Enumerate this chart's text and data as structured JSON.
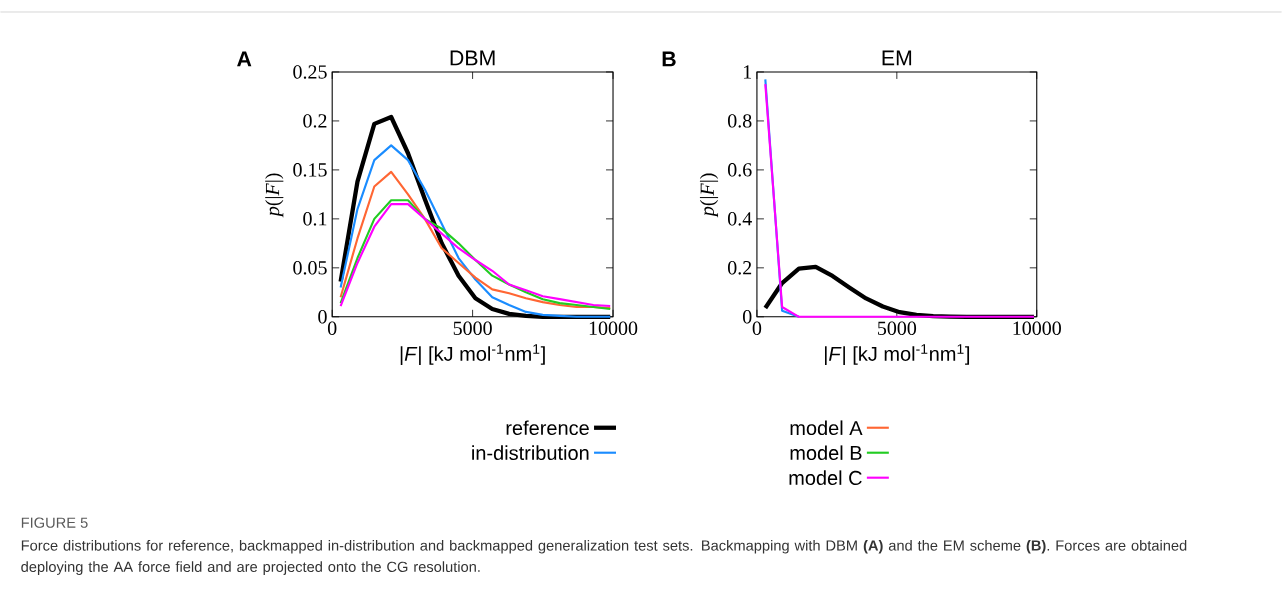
{
  "chart_data": [
    {
      "type": "line",
      "title": "DBM",
      "xlabel": "|*F*| [kJ mol$^{-1}$nm$^{1}$]",
      "ylabel": "*p*(|*F*|)",
      "annotations": [
        "A",
        "FIGURE 5",
        "Force distributions for reference, backmapped in-distribution and backmapped generalization test sets. Backmapping with DBM **(A)** and the EM scheme **(B)**. Forces are obtained deploying the AA force field and are projected onto the CG resolution."
      ],
      "x": [
        300,
        900,
        1500,
        2100,
        2700,
        3300,
        3900,
        4500,
        5100,
        5700,
        6300,
        6900,
        7500,
        8100,
        8700,
        9300,
        9900
      ],
      "xlim": [
        0,
        10000
      ],
      "xticks": [
        0,
        5000,
        10000
      ],
      "ylim": [
        0,
        0.25
      ],
      "yticks": [
        0,
        0.05,
        0.1,
        0.15,
        0.2,
        0.25
      ],
      "legend": "bottom",
      "marker": "none",
      "line_style": "solid",
      "grid": false,
      "series": [
        {
          "name": "reference",
          "color": "#000000",
          "values": [
            0.036,
            0.138,
            0.197,
            0.204,
            0.167,
            0.12,
            0.075,
            0.042,
            0.019,
            0.008,
            0.003,
            0.001,
            0,
            0,
            0,
            0,
            0
          ]
        },
        {
          "name": "in-distribution",
          "color": "#1a8cff",
          "values": [
            0.03,
            0.11,
            0.16,
            0.175,
            0.16,
            0.13,
            0.095,
            0.06,
            0.038,
            0.02,
            0.012,
            0.005,
            0.002,
            0.001,
            0,
            0,
            0
          ]
        },
        {
          "color": "#ff6633",
          "values": [
            0.02,
            0.08,
            0.133,
            0.148,
            0.125,
            0.1,
            0.07,
            0.055,
            0.04,
            0.028,
            0.024,
            0.019,
            0.015,
            0.012,
            0.01,
            0.01,
            0.009
          ]
        },
        {
          "color": "#22cc22",
          "values": [
            0.014,
            0.06,
            0.1,
            0.119,
            0.119,
            0.1,
            0.09,
            0.075,
            0.058,
            0.042,
            0.033,
            0.025,
            0.018,
            0.014,
            0.012,
            0.01,
            0.008
          ]
        },
        {
          "color": "#ff00ff",
          "values": [
            0.011,
            0.055,
            0.092,
            0.115,
            0.115,
            0.1,
            0.085,
            0.07,
            0.058,
            0.047,
            0.033,
            0.027,
            0.021,
            0.018,
            0.015,
            0.012,
            0.011
          ]
        }
      ]
    },
    {
      "type": "line",
      "title": "EM",
      "xlabel": "|*F*| [kJ mol$^{-1}$nm$^{1}$]",
      "ylabel": "*p*(|*F*|)",
      "annotations": [
        "B"
      ],
      "x": [
        300,
        900,
        1500,
        2100,
        2700,
        3300,
        3900,
        4500,
        5100,
        5700,
        6300,
        6900,
        7500,
        8100,
        8700,
        9300,
        9900
      ],
      "xlim": [
        0,
        10000
      ],
      "xticks": [
        0,
        5000,
        10000
      ],
      "ylim": [
        0,
        1
      ],
      "yticks": [
        0,
        0.2,
        0.4,
        0.6,
        0.8,
        1
      ],
      "legend": "bottom",
      "marker": "none",
      "line_style": "solid",
      "grid": false,
      "series": [
        {
          "color": "#000000",
          "values": [
            0.036,
            0.138,
            0.197,
            0.204,
            0.167,
            0.12,
            0.075,
            0.042,
            0.019,
            0.008,
            0.003,
            0.001,
            0,
            0,
            0,
            0,
            0
          ]
        },
        {
          "color": "#1a8cff",
          "values": [
            0.97,
            0.025,
            0,
            null,
            null,
            null,
            null,
            null,
            null,
            null,
            null,
            null,
            null,
            null,
            null,
            null,
            null
          ]
        },
        {
          "name": "model A",
          "color": "#ff6633",
          "values": [
            null,
            null,
            null,
            null,
            null,
            null,
            null,
            null,
            null,
            null,
            null,
            null,
            null,
            null,
            null,
            null,
            null
          ]
        },
        {
          "name": "model B",
          "color": "#22cc22",
          "values": [
            null,
            null,
            null,
            null,
            null,
            null,
            null,
            null,
            null,
            null,
            null,
            null,
            null,
            null,
            null,
            null,
            null
          ]
        },
        {
          "name": "model C",
          "color": "#ff00ff",
          "values": [
            0.95,
            0.04,
            0,
            0,
            0,
            0,
            0,
            0,
            0,
            0,
            0,
            0,
            0,
            0,
            0,
            0,
            0
          ]
        }
      ]
    }
  ]
}
